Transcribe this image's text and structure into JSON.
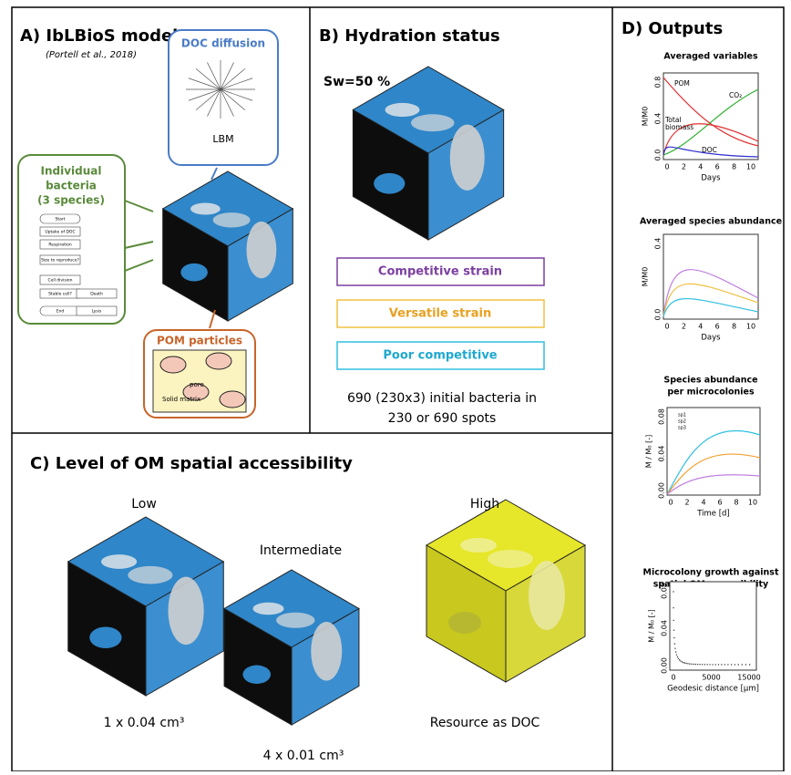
{
  "panel_a": {
    "title": "A) IbLBioS model",
    "citation": "(Portell et al., 2018)",
    "doc_box": {
      "title": "DOC diffusion",
      "label": "LBM"
    },
    "bacteria_box": {
      "title_lines": [
        "Individual",
        "bacteria",
        "(3 species)"
      ],
      "flow": [
        "Start",
        "Uptake of DOC",
        "Respiration",
        "Size to reproduce?",
        "Cell division",
        "Stable cell?",
        "Death",
        "End",
        "Lysis"
      ]
    },
    "pom_box": {
      "title": "POM particles",
      "solid": "Solid matrix",
      "pore": "pore"
    }
  },
  "panel_b": {
    "title": "B) Hydration status",
    "saturation": "Sw=50 %",
    "strains": [
      "Competitive strain",
      "Versatile strain",
      "Poor competitive"
    ],
    "caption_lines": [
      "690 (230x3) initial bacteria in",
      "230 or 690 spots"
    ]
  },
  "panel_c": {
    "title": "C) Level of OM spatial accessibility",
    "levels": [
      {
        "name": "Low",
        "caption": "1 x 0.04 cm³"
      },
      {
        "name": "Intermediate",
        "caption": "4 x 0.01 cm³"
      },
      {
        "name": "High",
        "caption": "Resource as DOC"
      }
    ]
  },
  "panel_d": {
    "title": "D) Outputs",
    "plots": [
      {
        "title_lines": [
          "Averaged variables"
        ],
        "ylabel": "M/M0",
        "xlabel": "Days",
        "yticks": [
          "0.0",
          "0.4",
          "0.8"
        ],
        "xticks": [
          "0",
          "2",
          "4",
          "6",
          "8",
          "10"
        ],
        "annotations": [
          "POM",
          "CO₂",
          "Total",
          "biomass",
          "DOC"
        ]
      },
      {
        "title_lines": [
          "Averaged species abundance"
        ],
        "ylabel": "M/M0",
        "xlabel": "Days",
        "yticks": [
          "0.0",
          "0.4"
        ],
        "xticks": [
          "0",
          "2",
          "4",
          "6",
          "8",
          "10"
        ],
        "annotations": []
      },
      {
        "title_lines": [
          "Species abundance",
          "per microcolonies"
        ],
        "ylabel": "M / M₀ [-]",
        "xlabel": "Time [d]",
        "yticks": [
          "0.00",
          "0.04",
          "0.08"
        ],
        "xticks": [
          "0",
          "2",
          "4",
          "6",
          "8",
          "10"
        ],
        "annotations": [
          "sp1",
          "sp2",
          "sp3"
        ]
      },
      {
        "title_lines": [
          "Microcolony growth against",
          "spatial OM accessibility"
        ],
        "ylabel": "M / M₀ [-]",
        "xlabel": "Geodesic distance [µm]",
        "yticks": [
          "0.00",
          "0.04",
          "0.08"
        ],
        "xticks": [
          "0",
          "5000",
          "15000"
        ],
        "annotations": []
      }
    ]
  }
}
